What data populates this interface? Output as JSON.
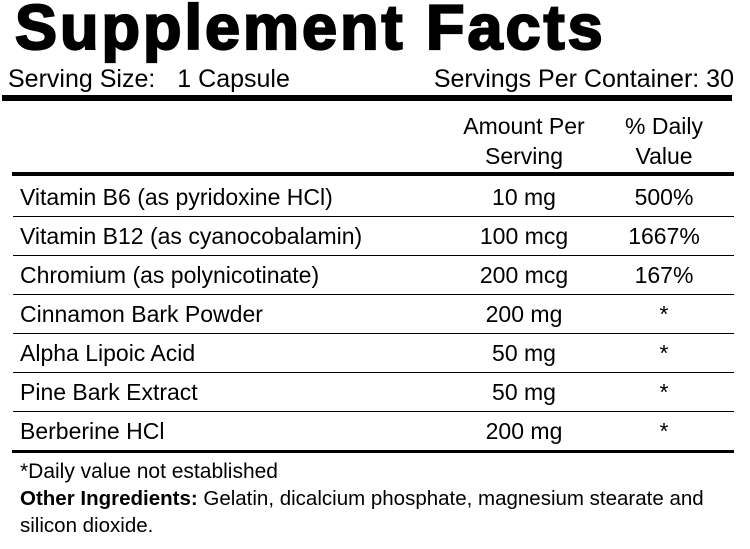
{
  "label": {
    "title": "Supplement Facts",
    "serving": {
      "size_label": "Serving Size:",
      "size_value": "1 Capsule",
      "per_container": "Servings Per Container: 30"
    },
    "columns": {
      "amount_line1": "Amount Per",
      "amount_line2": "Serving",
      "dv_line1": "% Daily",
      "dv_line2": "Value"
    },
    "rows": [
      {
        "name": "Vitamin B6 (as pyridoxine HCl)",
        "amount": "10 mg",
        "dv": "500%"
      },
      {
        "name": "Vitamin B12 (as cyanocobalamin)",
        "amount": "100 mcg",
        "dv": "1667%"
      },
      {
        "name": "Chromium (as polynicotinate)",
        "amount": "200 mcg",
        "dv": "167%"
      },
      {
        "name": "Cinnamon Bark Powder",
        "amount": "200 mg",
        "dv": "*"
      },
      {
        "name": "Alpha Lipoic Acid",
        "amount": "50 mg",
        "dv": "*"
      },
      {
        "name": "Pine Bark Extract",
        "amount": "50 mg",
        "dv": "*"
      },
      {
        "name": "Berberine HCl",
        "amount": "200 mg",
        "dv": "*"
      }
    ],
    "footnote": "*Daily value not established",
    "other_ingredients": {
      "label": "Other Ingredients:",
      "text": " Gelatin, dicalcium phosphate, magnesium stearate and silicon dioxide."
    },
    "colors": {
      "text": "#000000",
      "background": "#ffffff"
    }
  }
}
